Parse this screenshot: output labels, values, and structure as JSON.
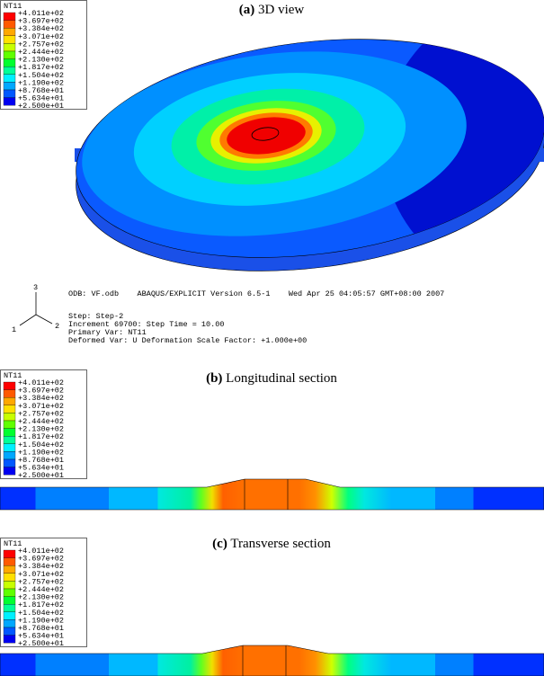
{
  "panels": [
    {
      "caption": {
        "label": "(a)",
        "text": "3D view"
      },
      "legend": {
        "title": "NT11",
        "labels": [
          "+4.011e+02",
          "+3.697e+02",
          "+3.384e+02",
          "+3.071e+02",
          "+2.757e+02",
          "+2.444e+02",
          "+2.130e+02",
          "+1.817e+02",
          "+1.504e+02",
          "+1.190e+02",
          "+8.768e+01",
          "+5.634e+01",
          "+2.500e+01"
        ]
      }
    },
    {
      "caption": {
        "label": "(b)",
        "text": "Longitudinal section"
      },
      "legend": {
        "title": "NT11",
        "labels": [
          "+4.011e+02",
          "+3.697e+02",
          "+3.384e+02",
          "+3.071e+02",
          "+2.757e+02",
          "+2.444e+02",
          "+2.130e+02",
          "+1.817e+02",
          "+1.504e+02",
          "+1.190e+02",
          "+8.768e+01",
          "+5.634e+01",
          "+2.500e+01"
        ]
      }
    },
    {
      "caption": {
        "label": "(c)",
        "text": "Transverse section"
      },
      "legend": {
        "title": "NT11",
        "labels": [
          "+4.011e+02",
          "+3.697e+02",
          "+3.384e+02",
          "+3.071e+02",
          "+2.757e+02",
          "+2.444e+02",
          "+2.130e+02",
          "+1.817e+02",
          "+1.504e+02",
          "+1.190e+02",
          "+8.768e+01",
          "+5.634e+01",
          "+2.500e+01"
        ]
      }
    }
  ],
  "info": {
    "odb": "ODB: VF.odb    ABAQUS/EXPLICIT Version 6.5-1    Wed Apr 25 04:05:57 GMT+08:00 2007",
    "lines": [
      "Step: Step-2",
      "Increment     69700: Step Time =    10.00",
      "Primary Var: NT11",
      "Deformed Var: U   Deformation Scale Factor: +1.000e+00"
    ]
  },
  "triad": {
    "x": "1",
    "y": "2",
    "z": "3"
  }
}
